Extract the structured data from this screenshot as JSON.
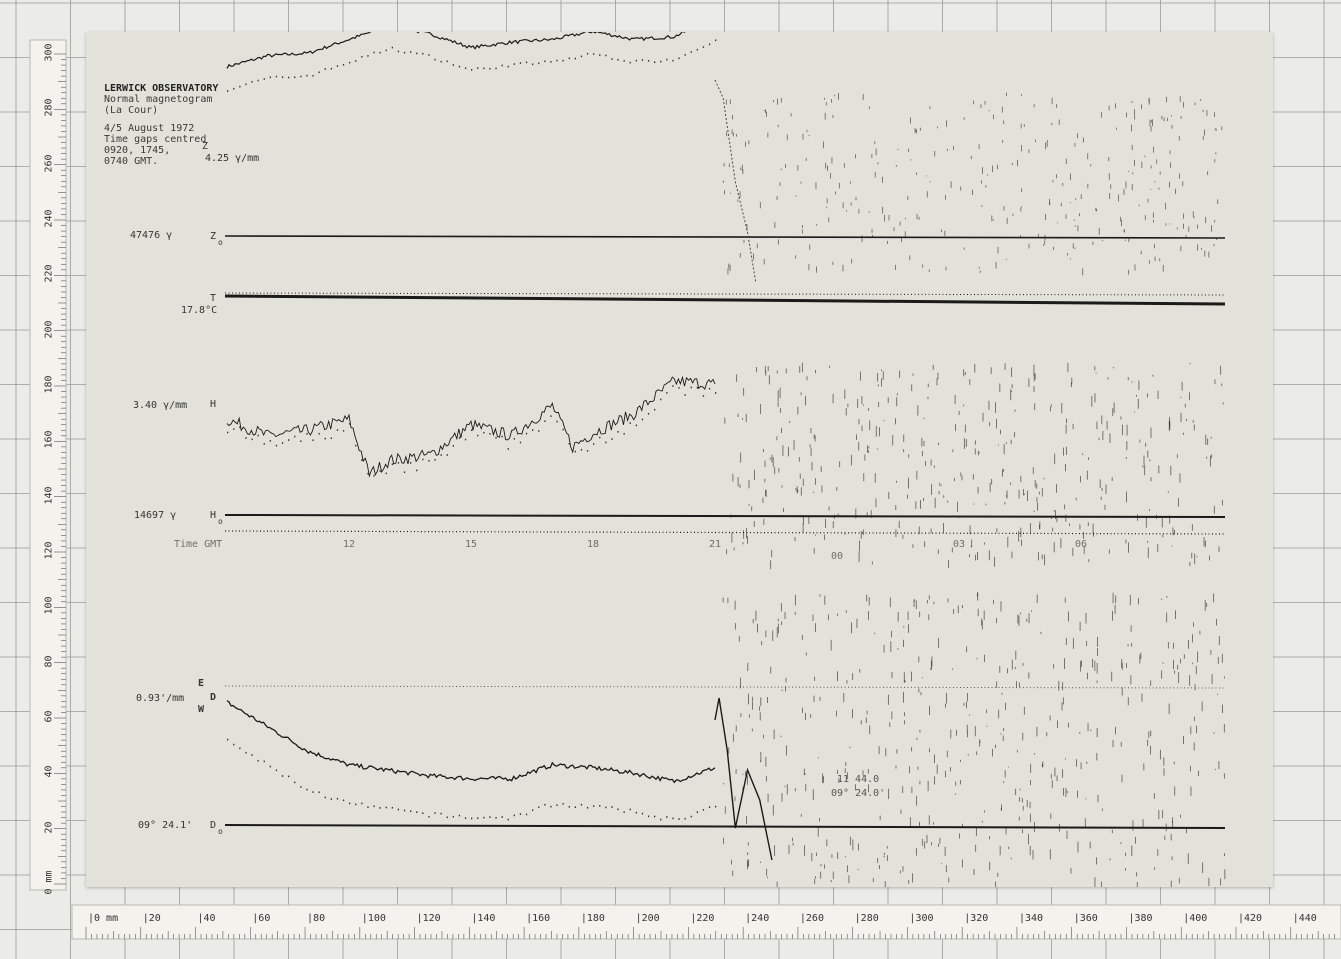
{
  "header": {
    "observatory": "LERWICK OBSERVATORY",
    "line2": "Normal magnetogram",
    "line3": "(La Cour)",
    "line4": "4/5 August 1972",
    "line5": "Time gaps centred",
    "line6": "0920, 1745,",
    "line7": "0740  GMT."
  },
  "labels": {
    "z_code": "Z",
    "z_scale": "4.25 γ/mm",
    "z0_value": "47476 γ",
    "z0_code": "Z",
    "z0_sub": "o",
    "t_code": "T",
    "t_value": "17.8°C",
    "h_scale": "3.40 γ/mm",
    "h_code": "H",
    "h0_value": "14697 γ",
    "h0_code": "H",
    "h0_sub": "o",
    "d_scale": "0.93'/mm",
    "d_e": "E",
    "d_code": "D",
    "d_w": "W",
    "d0_value": "09° 24.1'",
    "d0_code": "D",
    "d0_sub": "o",
    "annot_a": "11 44.0",
    "annot_b": "09°  24.0'"
  },
  "chart_data": {
    "type": "line",
    "title": "Normal magnetogram",
    "xlabel": "Time GMT",
    "x_ticks": [
      "12",
      "15",
      "18",
      "21",
      "00",
      "03",
      "06"
    ],
    "x_unit": "hour GMT (4/5 August 1972)",
    "series": [
      {
        "name": "Z",
        "scale": "4.25 γ/mm",
        "baseline": "47476 γ",
        "x": [
          9,
          10,
          11,
          12,
          13,
          14,
          15,
          16,
          17,
          18,
          19,
          20,
          21
        ],
        "values": [
          62,
          66,
          67,
          72,
          77,
          74,
          69,
          71,
          72,
          75,
          72,
          73,
          80
        ]
      },
      {
        "name": "H",
        "scale": "3.40 γ/mm",
        "baseline": "14697 γ",
        "x": [
          9,
          10,
          11,
          12,
          12.5,
          13,
          14,
          15,
          16,
          17,
          17.5,
          18,
          19,
          20,
          21
        ],
        "values": [
          35,
          29,
          31,
          35,
          15,
          20,
          22,
          33,
          29,
          40,
          25,
          30,
          37,
          49,
          48
        ]
      },
      {
        "name": "D",
        "scale": "0.93'/mm",
        "baseline": "09° 24.1'",
        "x": [
          9,
          10,
          11,
          12,
          13,
          14,
          15,
          16,
          17,
          18,
          19,
          20,
          21
        ],
        "values": [
          45,
          36,
          27,
          22,
          20,
          18,
          17,
          17,
          22,
          21,
          19,
          16,
          21
        ]
      },
      {
        "name": "T",
        "baseline": "17.8°C",
        "x": [
          9,
          33
        ],
        "values": [
          0,
          0
        ]
      }
    ],
    "ruler_bottom": {
      "unit": "mm",
      "ticks": [
        "0 mm",
        "20",
        "40",
        "60",
        "80",
        "100",
        "120",
        "140",
        "160",
        "180",
        "200",
        "220",
        "240",
        "260",
        "280",
        "300",
        "320",
        "340",
        "360",
        "380",
        "400",
        "420",
        "440"
      ]
    },
    "ruler_left": {
      "unit": "mm",
      "ticks": [
        "0 mm",
        "20",
        "40",
        "60",
        "80",
        "100",
        "120",
        "140",
        "160",
        "180",
        "200",
        "220",
        "240",
        "260",
        "280",
        "300"
      ]
    }
  },
  "style": {
    "paper": "#e3e2da",
    "ink": "#1a1a1a",
    "grid": "#9a9a96",
    "ruler": "#f3f2ec"
  }
}
